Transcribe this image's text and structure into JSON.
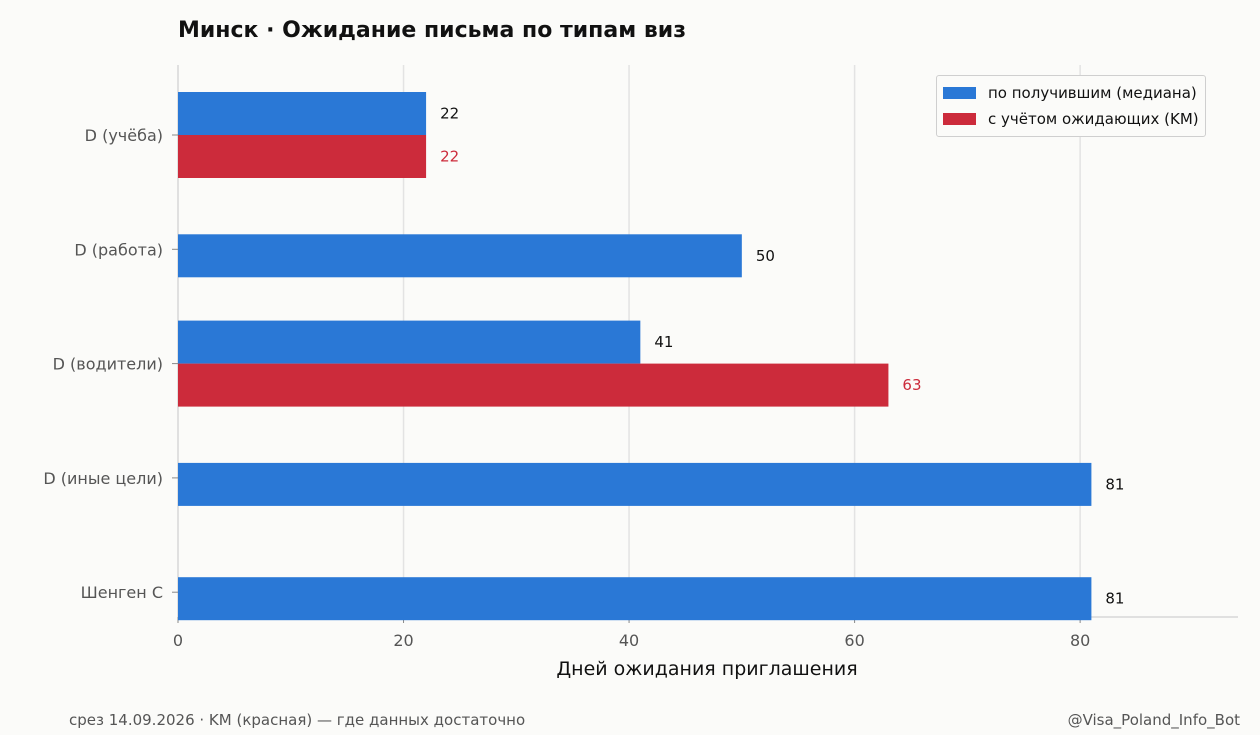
{
  "chart_data": {
    "type": "bar",
    "orientation": "horizontal",
    "title": "Минск · Ожидание письма по типам виз",
    "xlabel": "Дней ожидания приглашения",
    "ylabel": "",
    "xlim": [
      0,
      94
    ],
    "xticks": [
      0,
      20,
      40,
      60,
      80
    ],
    "grid": "vertical",
    "legend_position": "top-right",
    "categories": [
      "D (учёба)",
      "D (работа)",
      "D (водители)",
      "D (иные цели)",
      "Шенген С"
    ],
    "series": [
      {
        "name": "по получившим (медиана)",
        "color": "#2a78d6",
        "label_color": "#111111",
        "values": [
          22,
          50,
          41,
          81,
          81
        ]
      },
      {
        "name": "с учётом ожидающих (KM)",
        "color": "#cc2b3b",
        "label_color": "#cc2b3b",
        "values": [
          22,
          null,
          63,
          null,
          null
        ]
      }
    ]
  },
  "footer": {
    "left": "срез 14.09.2026 · KM (красная) — где данных достаточно",
    "right": "@Visa_Poland_Info_Bot"
  }
}
